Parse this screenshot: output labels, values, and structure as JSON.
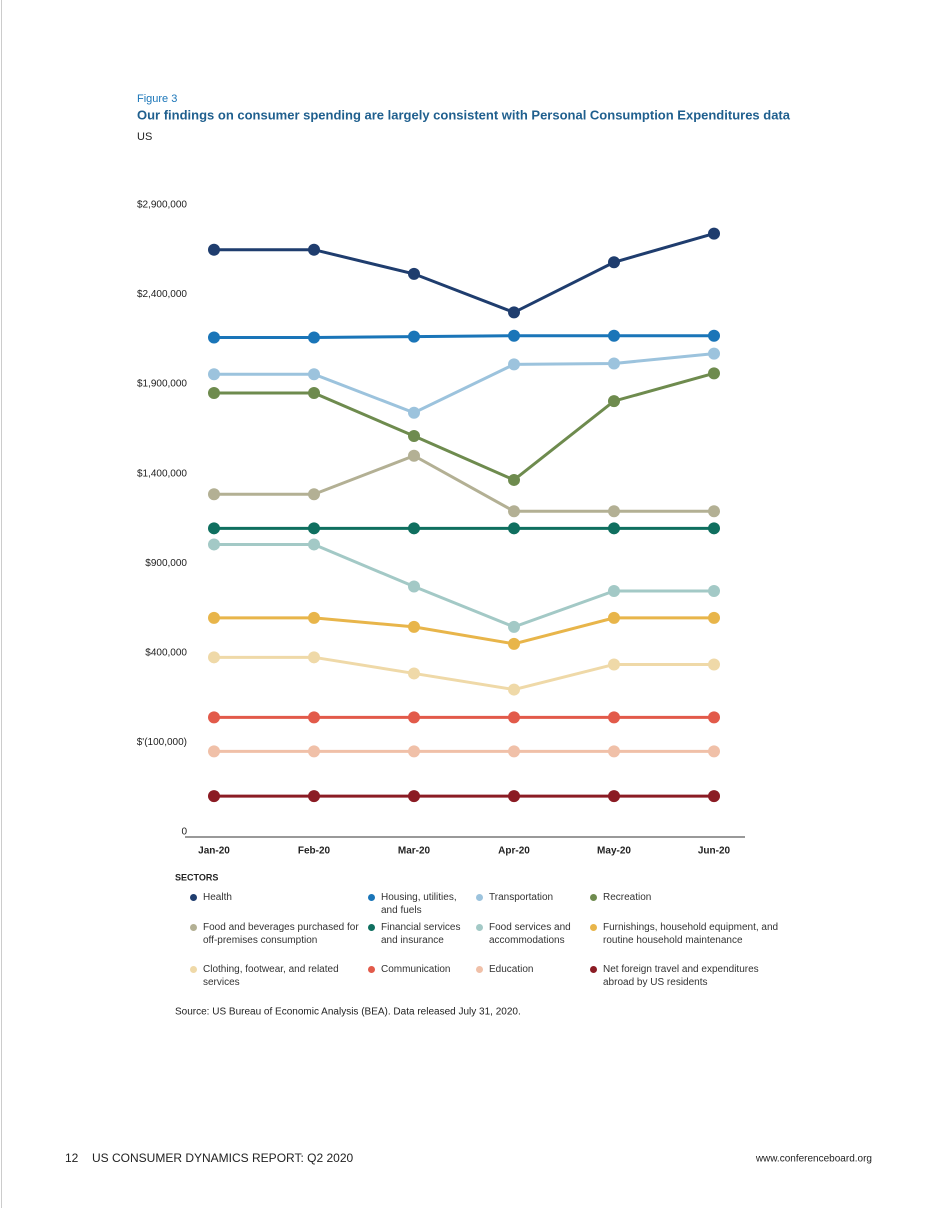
{
  "header": {
    "figure": "Figure 3",
    "title": "Our findings on consumer spending are largely consistent with Personal Consumption Expenditures data",
    "subtitle": "US"
  },
  "chart_data": {
    "type": "line",
    "categories": [
      "Jan-20",
      "Feb-20",
      "Mar-20",
      "Apr-20",
      "May-20",
      "Jun-20"
    ],
    "ylim": [
      -600000,
      3000000
    ],
    "yticks": [
      {
        "value": 2900000,
        "label": "$2,900,000"
      },
      {
        "value": 2400000,
        "label": "$2,400,000"
      },
      {
        "value": 1900000,
        "label": "$1,900,000"
      },
      {
        "value": 1400000,
        "label": "$1,400,000"
      },
      {
        "value": 900000,
        "label": "$900,000"
      },
      {
        "value": 400000,
        "label": "$400,000"
      },
      {
        "value": -100000,
        "label": "$'(100,000)"
      }
    ],
    "y_origin_label": "0",
    "grid": false,
    "legend_title": "SECTORS",
    "series": [
      {
        "name": "Health",
        "color": "#1f3d6e",
        "values": [
          2650000,
          2650000,
          2515000,
          2300000,
          2580000,
          2740000
        ]
      },
      {
        "name": "Housing, utilities, and fuels",
        "color": "#1a75b8",
        "values": [
          2160000,
          2160000,
          2165000,
          2170000,
          2170000,
          2170000
        ]
      },
      {
        "name": "Transportation",
        "color": "#9cc3dd",
        "values": [
          1955000,
          1955000,
          1740000,
          2010000,
          2015000,
          2070000
        ]
      },
      {
        "name": "Recreation",
        "color": "#6e8b4e",
        "values": [
          1850000,
          1850000,
          1610000,
          1365000,
          1805000,
          1960000
        ]
      },
      {
        "name": "Food and beverages purchased for off-premises consumption",
        "color": "#b3b094",
        "values": [
          1285000,
          1285000,
          1500000,
          1190000,
          1190000,
          1190000
        ]
      },
      {
        "name": "Financial services and insurance",
        "color": "#0f6f5f",
        "values": [
          1095000,
          1095000,
          1095000,
          1095000,
          1095000,
          1095000
        ]
      },
      {
        "name": "Food services and accommodations",
        "color": "#a3c9c6",
        "values": [
          1005000,
          1005000,
          770000,
          545000,
          745000,
          745000
        ]
      },
      {
        "name": "Furnishings, household equipment, and routine household maintenance",
        "color": "#e8b54a",
        "values": [
          595000,
          595000,
          545000,
          450000,
          595000,
          595000
        ]
      },
      {
        "name": "Clothing, footwear, and related services",
        "color": "#efd9a8",
        "values": [
          375000,
          375000,
          285000,
          195000,
          335000,
          335000
        ]
      },
      {
        "name": "Communication",
        "color": "#e25a4a",
        "values": [
          40000,
          40000,
          40000,
          40000,
          40000,
          40000
        ]
      },
      {
        "name": "Education",
        "color": "#f0c0a8",
        "values": [
          -150000,
          -150000,
          -150000,
          -150000,
          -150000,
          -150000
        ]
      },
      {
        "name": "Net foreign travel and expenditures abroad by US residents",
        "color": "#8b1c24",
        "values": [
          -400000,
          -400000,
          -400000,
          -400000,
          -400000,
          -400000
        ]
      }
    ]
  },
  "source": "Source: US Bureau of Economic Analysis (BEA). Data released July 31, 2020.",
  "footer": {
    "page": "12",
    "report": "US CONSUMER DYNAMICS REPORT: Q2 2020",
    "url": "www.conferenceboard.org"
  }
}
